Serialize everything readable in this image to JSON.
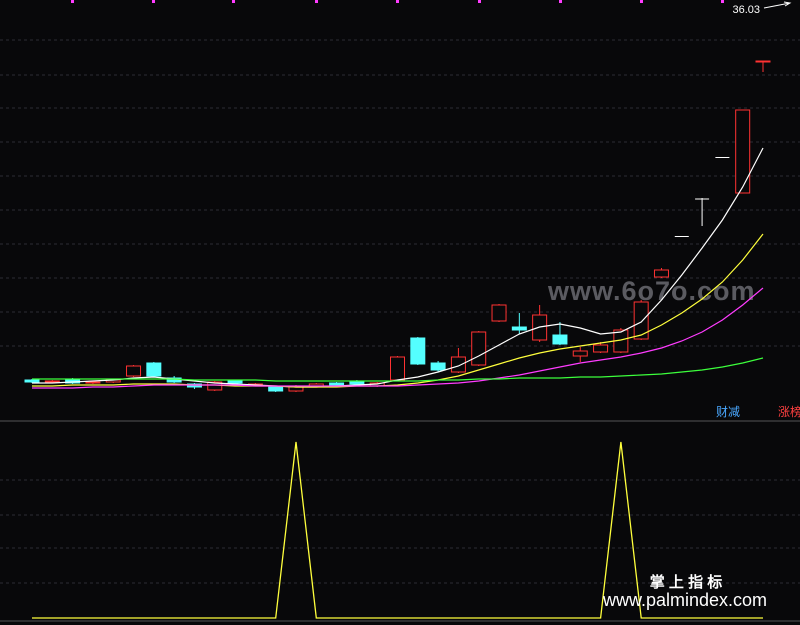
{
  "chart_data": {
    "type": "candlestick",
    "ylim": [
      7.3,
      40.9
    ],
    "max_label": 36.03,
    "candles": {
      "up_color": "#ff3232",
      "down_color": "#54ffff",
      "flat_color": "#ffffff",
      "open": [
        10.5,
        10.34,
        10.58,
        10.26,
        10.34,
        10.82,
        11.86,
        10.66,
        10.18,
        9.7,
        10.42,
        10.1,
        9.94,
        9.62,
        10.02,
        10.26,
        10.42,
        10.02,
        10.5,
        13.86,
        11.86,
        11.14,
        11.7,
        15.22,
        14.74,
        13.7,
        14.1,
        12.42,
        12.74,
        12.74,
        13.78,
        18.74,
        22.02,
        25.02,
        28.34,
        25.46,
        36.0
      ],
      "close": [
        10.34,
        10.42,
        10.26,
        10.34,
        10.5,
        11.62,
        10.82,
        10.34,
        9.94,
        10.34,
        10.26,
        10.18,
        9.62,
        10.02,
        10.18,
        10.02,
        10.18,
        10.26,
        12.34,
        11.78,
        11.3,
        12.34,
        14.34,
        16.5,
        14.5,
        15.7,
        13.38,
        12.82,
        13.3,
        14.5,
        16.74,
        19.3,
        22.02,
        25.02,
        28.34,
        32.1,
        36.02
      ],
      "high": [
        10.58,
        10.5,
        10.66,
        10.42,
        10.58,
        11.7,
        11.94,
        10.82,
        10.26,
        10.42,
        10.5,
        10.26,
        10.02,
        10.1,
        10.26,
        10.34,
        10.5,
        10.34,
        12.42,
        13.94,
        12.02,
        13.06,
        14.42,
        16.58,
        15.86,
        16.5,
        15.14,
        13.14,
        13.54,
        14.66,
        16.9,
        19.46,
        22.02,
        25.06,
        28.34,
        32.1,
        36.03
      ],
      "low": [
        10.26,
        10.26,
        10.18,
        10.18,
        10.26,
        10.74,
        10.74,
        10.26,
        9.78,
        9.62,
        10.18,
        10.02,
        9.54,
        9.54,
        9.94,
        9.94,
        10.1,
        9.94,
        10.42,
        11.7,
        11.14,
        11.06,
        11.62,
        15.14,
        14.18,
        13.54,
        13.3,
        11.94,
        12.66,
        12.66,
        13.7,
        18.66,
        22.02,
        22.82,
        28.34,
        25.46,
        35.14
      ]
    },
    "series": [
      {
        "color": "#ffffff",
        "values": [
          10.26,
          10.26,
          10.34,
          10.42,
          10.5,
          10.66,
          10.74,
          10.58,
          10.42,
          10.26,
          10.18,
          10.1,
          10.02,
          9.94,
          9.94,
          10.02,
          10.1,
          10.18,
          10.5,
          10.74,
          11.14,
          11.62,
          12.42,
          13.3,
          14.18,
          14.74,
          14.98,
          14.66,
          14.18,
          14.34,
          15.14,
          16.9,
          18.9,
          21.06,
          23.3,
          25.94,
          29.06
        ]
      },
      {
        "color": "#ffff3c",
        "values": [
          10.02,
          10.02,
          10.1,
          10.1,
          10.1,
          10.18,
          10.18,
          10.18,
          10.1,
          10.1,
          10.02,
          10.02,
          10.02,
          9.94,
          9.94,
          9.94,
          10.02,
          10.02,
          10.1,
          10.26,
          10.5,
          10.82,
          11.3,
          11.78,
          12.26,
          12.66,
          12.98,
          13.22,
          13.46,
          13.7,
          14.1,
          14.9,
          15.86,
          16.98,
          18.34,
          20.1,
          22.18
        ]
      },
      {
        "color": "#ff3cff",
        "values": [
          9.86,
          9.86,
          9.86,
          9.94,
          9.94,
          10.02,
          10.1,
          10.1,
          10.1,
          10.1,
          10.1,
          10.02,
          10.02,
          10.02,
          10.02,
          10.02,
          10.02,
          10.02,
          10.02,
          10.1,
          10.18,
          10.26,
          10.42,
          10.66,
          10.9,
          11.22,
          11.54,
          11.86,
          12.1,
          12.34,
          12.66,
          13.06,
          13.62,
          14.34,
          15.3,
          16.5,
          17.86
        ]
      },
      {
        "color": "#3cff3c",
        "values": [
          10.58,
          10.58,
          10.58,
          10.58,
          10.58,
          10.58,
          10.58,
          10.58,
          10.5,
          10.5,
          10.5,
          10.5,
          10.42,
          10.42,
          10.42,
          10.42,
          10.42,
          10.42,
          10.42,
          10.42,
          10.5,
          10.5,
          10.58,
          10.58,
          10.66,
          10.66,
          10.66,
          10.74,
          10.74,
          10.82,
          10.9,
          10.98,
          11.14,
          11.3,
          11.54,
          11.86,
          12.26
        ]
      }
    ],
    "indicator": {
      "color": "#ffff3c",
      "ylim": [
        0,
        1
      ],
      "values": [
        0,
        0,
        0,
        0,
        0,
        0,
        0,
        0,
        0,
        0,
        0,
        0,
        0,
        1,
        0,
        0,
        0,
        0,
        0,
        0,
        0,
        0,
        0,
        0,
        0,
        0,
        0,
        0,
        0,
        1,
        0,
        0,
        0,
        0,
        0,
        0,
        0
      ]
    },
    "tags": [
      {
        "text": "财减",
        "color": "#4aa8ff"
      },
      {
        "text": "涨榜",
        "color": "#ff4040"
      }
    ]
  },
  "watermarks": {
    "site": "www.6o7o.com",
    "brand": "掌 上 指 标",
    "url": "www.palmindex.com"
  }
}
